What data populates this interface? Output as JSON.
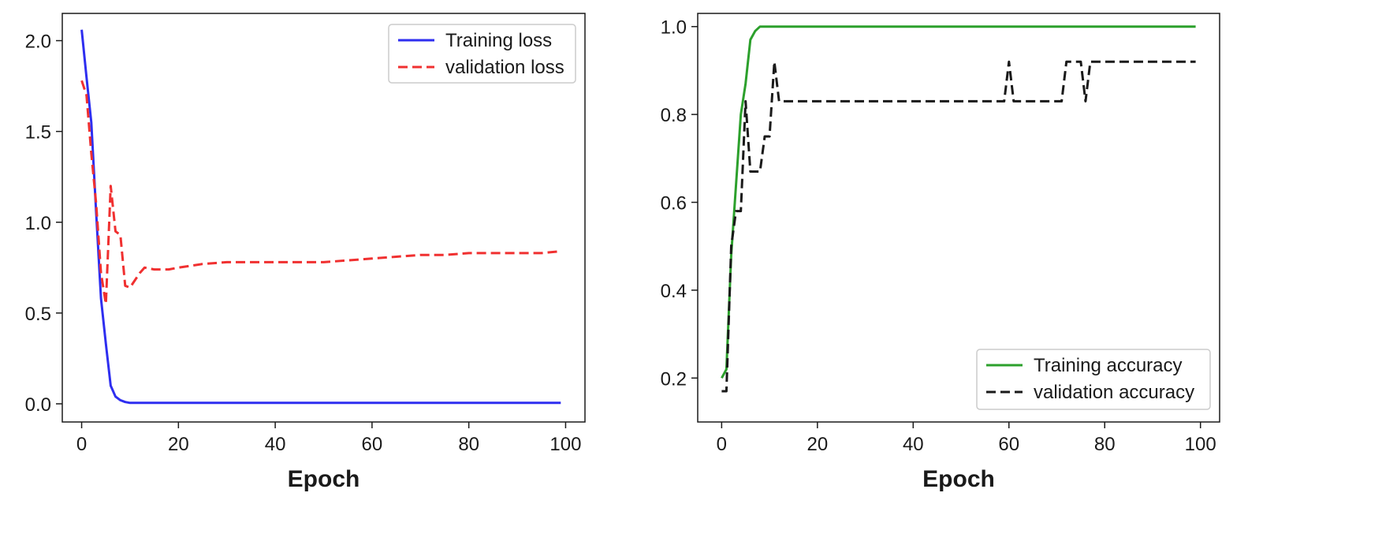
{
  "chart_data": [
    {
      "type": "line",
      "title": "",
      "xlabel": "Epoch",
      "ylabel": "",
      "xlim": [
        -4,
        104
      ],
      "ylim": [
        -0.1,
        2.15
      ],
      "xticks": [
        0,
        20,
        40,
        60,
        80,
        100
      ],
      "yticks": [
        0.0,
        0.5,
        1.0,
        1.5,
        2.0
      ],
      "ytick_labels": [
        "0.0",
        "0.5",
        "1.0",
        "1.5",
        "2.0"
      ],
      "grid": false,
      "legend_position": "top-right",
      "series": [
        {
          "name": "Training loss",
          "color": "#2e2ef0",
          "style": "solid",
          "x": [
            0,
            1,
            2,
            3,
            4,
            5,
            6,
            7,
            8,
            9,
            10,
            12,
            20,
            40,
            60,
            80,
            99
          ],
          "y": [
            2.06,
            1.8,
            1.55,
            1.05,
            0.58,
            0.33,
            0.1,
            0.04,
            0.02,
            0.01,
            0.005,
            0.005,
            0.005,
            0.005,
            0.005,
            0.005,
            0.005
          ]
        },
        {
          "name": "validation loss",
          "color": "#f03030",
          "style": "dashed",
          "x": [
            0,
            1,
            2,
            3,
            4,
            5,
            6,
            7,
            8,
            9,
            10,
            11,
            12,
            13,
            15,
            18,
            20,
            25,
            30,
            35,
            40,
            45,
            50,
            55,
            60,
            65,
            70,
            75,
            80,
            85,
            90,
            95,
            99
          ],
          "y": [
            1.78,
            1.7,
            1.38,
            1.1,
            0.72,
            0.55,
            1.2,
            0.95,
            0.93,
            0.65,
            0.64,
            0.68,
            0.72,
            0.75,
            0.74,
            0.74,
            0.75,
            0.77,
            0.78,
            0.78,
            0.78,
            0.78,
            0.78,
            0.79,
            0.8,
            0.81,
            0.82,
            0.82,
            0.83,
            0.83,
            0.83,
            0.83,
            0.84
          ]
        }
      ]
    },
    {
      "type": "line",
      "title": "",
      "xlabel": "Epoch",
      "ylabel": "",
      "xlim": [
        -5,
        104
      ],
      "ylim": [
        0.1,
        1.03
      ],
      "xticks": [
        0,
        20,
        40,
        60,
        80,
        100
      ],
      "yticks": [
        0.2,
        0.4,
        0.6,
        0.8,
        1.0
      ],
      "ytick_labels": [
        "0.2",
        "0.4",
        "0.6",
        "0.8",
        "1.0"
      ],
      "grid": false,
      "legend_position": "bottom-right",
      "series": [
        {
          "name": "Training accuracy",
          "color": "#2ca02c",
          "style": "solid",
          "x": [
            0,
            1,
            2,
            3,
            4,
            5,
            6,
            7,
            8,
            10,
            20,
            40,
            60,
            80,
            99
          ],
          "y": [
            0.2,
            0.22,
            0.48,
            0.64,
            0.8,
            0.87,
            0.97,
            0.99,
            1.0,
            1.0,
            1.0,
            1.0,
            1.0,
            1.0,
            1.0
          ]
        },
        {
          "name": "validation accuracy",
          "color": "#1a1a1a",
          "style": "dashed",
          "x": [
            0,
            1,
            2,
            3,
            4,
            5,
            6,
            7,
            8,
            9,
            10,
            11,
            12,
            20,
            40,
            59,
            60,
            61,
            62,
            70,
            71,
            72,
            75,
            76,
            77,
            78,
            80,
            90,
            99
          ],
          "y": [
            0.17,
            0.17,
            0.5,
            0.58,
            0.58,
            0.83,
            0.67,
            0.67,
            0.67,
            0.75,
            0.75,
            0.92,
            0.83,
            0.83,
            0.83,
            0.83,
            0.92,
            0.83,
            0.83,
            0.83,
            0.83,
            0.92,
            0.92,
            0.83,
            0.92,
            0.92,
            0.92,
            0.92,
            0.92
          ]
        }
      ]
    }
  ]
}
